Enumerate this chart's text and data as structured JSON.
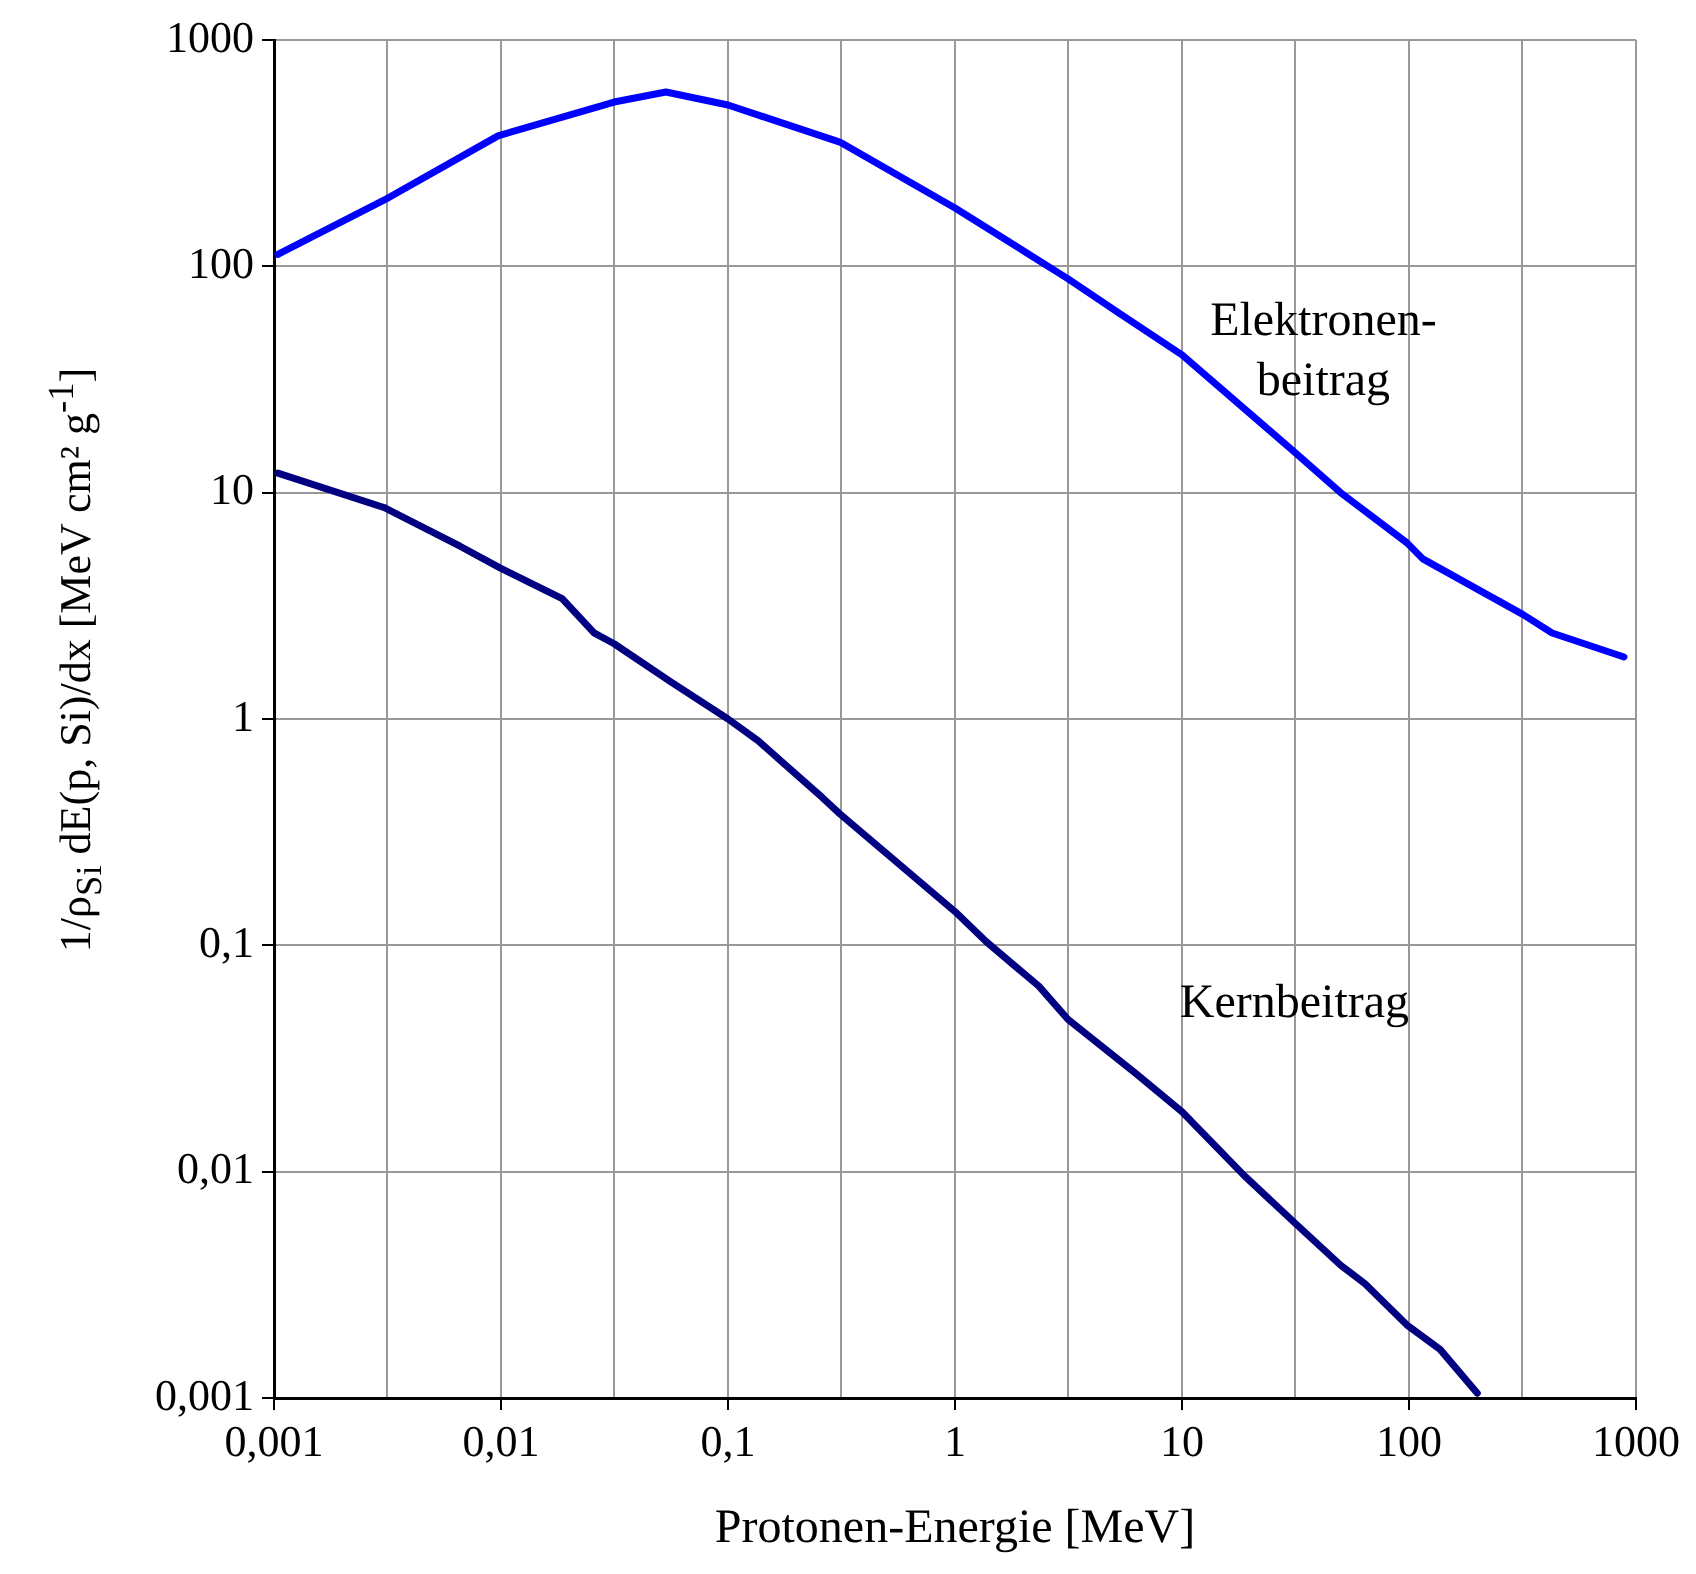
{
  "chart_data": {
    "type": "line",
    "xlabel": "Protonen-Energie [MeV]",
    "ylabel": "1/ρ$_{Si}$ dE(p, Si)/dx [MeV cm² g$^{-1}$]",
    "log": "xy",
    "grid": true,
    "legend": false,
    "marker": "none",
    "line_style": "solid",
    "xlim": [
      0.001,
      1000
    ],
    "ylim": [
      0.001,
      1000
    ],
    "xticks": [
      {
        "value": 0.001,
        "label": "0,001"
      },
      {
        "value": 0.003162,
        "label": null
      },
      {
        "value": 0.01,
        "label": "0,01"
      },
      {
        "value": 0.03162,
        "label": null
      },
      {
        "value": 0.1,
        "label": "0,1"
      },
      {
        "value": 0.3162,
        "label": null
      },
      1,
      {
        "value": 3.162,
        "label": null
      },
      10,
      {
        "value": 31.62,
        "label": null
      },
      100,
      {
        "value": 316.2,
        "label": null
      },
      1000
    ],
    "yticks": [
      {
        "value": 0.001,
        "label": "0,001"
      },
      {
        "value": 0.01,
        "label": "0,01"
      },
      {
        "value": 0.1,
        "label": "0,1"
      },
      1,
      10,
      100,
      1000
    ],
    "series": [
      {
        "name": "Elektronen-\nbeitrag",
        "color": "#0000ff",
        "x": [
          0.00104,
          0.00305,
          0.0097,
          0.0315,
          0.0533,
          0.1,
          0.311,
          1,
          3.15,
          5.3,
          10,
          31.6,
          50,
          98,
          115,
          317,
          427,
          885
        ],
        "values": [
          113,
          196,
          377,
          532,
          589,
          516,
          354,
          181,
          88,
          62,
          40.6,
          15,
          10,
          6.0,
          5.1,
          2.9,
          2.4,
          1.88
        ]
      },
      {
        "name": "Kernbeitrag",
        "color": "#000080",
        "x": [
          0.00104,
          0.00305,
          0.0066,
          0.0099,
          0.0186,
          0.0257,
          0.0315,
          0.056,
          0.1,
          0.136,
          0.26,
          0.311,
          1,
          1.37,
          2.34,
          3.15,
          6.3,
          10,
          18.8,
          31.6,
          50,
          64,
          98,
          137,
          200
        ],
        "values": [
          12.2,
          8.6,
          5.8,
          4.65,
          3.4,
          2.4,
          2.15,
          1.46,
          1.0,
          0.8,
          0.45,
          0.381,
          0.141,
          0.104,
          0.066,
          0.047,
          0.027,
          0.0184,
          0.0096,
          0.0059,
          0.00386,
          0.0032,
          0.0021,
          0.00164,
          0.00105
        ]
      }
    ]
  }
}
